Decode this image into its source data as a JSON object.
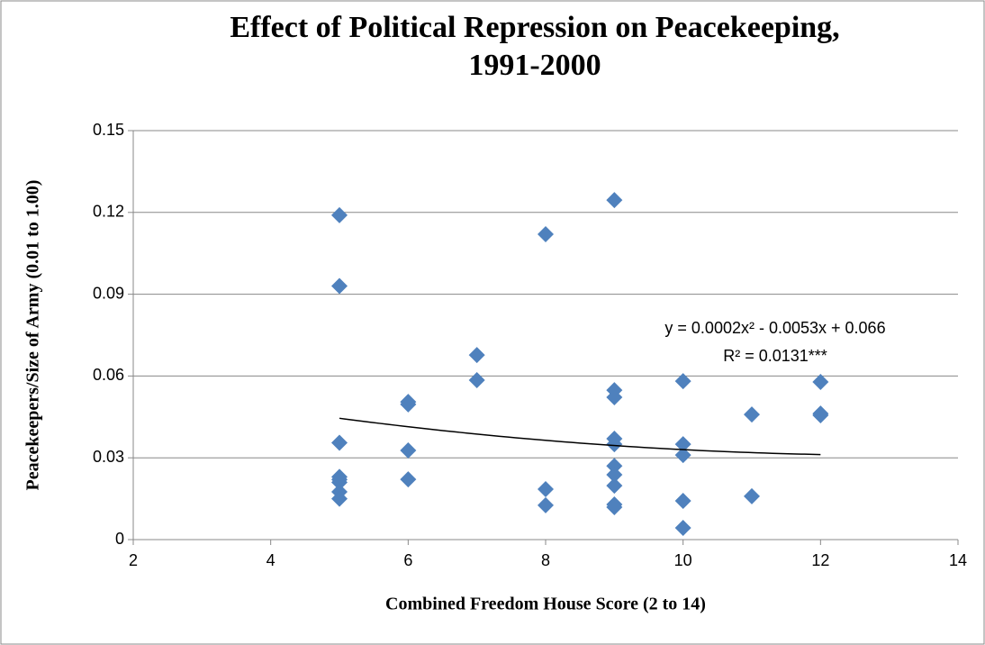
{
  "chart_data": {
    "type": "scatter",
    "title": [
      "Effect of Political Repression on Peacekeeping,",
      "1991-2000"
    ],
    "xlabel": "Combined Freedom House Score (2 to 14)",
    "ylabel": "Peacekeepers/Size of Army (0.01 to 1.00)",
    "x": [
      5,
      5,
      5,
      5,
      5,
      5,
      5,
      5,
      6,
      6,
      6,
      6,
      7,
      7,
      8,
      8,
      8,
      9,
      9,
      9,
      9,
      9,
      9,
      9,
      9,
      9,
      9,
      10,
      10,
      10,
      10,
      10,
      11,
      11,
      12,
      12,
      12
    ],
    "values": [
      0.119,
      0.093,
      0.0355,
      0.023,
      0.022,
      0.021,
      0.0175,
      0.015,
      0.0505,
      0.0496,
      0.0327,
      0.0221,
      0.0677,
      0.0585,
      0.112,
      0.0185,
      0.0126,
      0.1245,
      0.0548,
      0.0522,
      0.037,
      0.035,
      0.027,
      0.0238,
      0.0198,
      0.0129,
      0.0119,
      0.0581,
      0.035,
      0.031,
      0.0142,
      0.0043,
      0.0459,
      0.0159,
      0.0578,
      0.0462,
      0.0456
    ],
    "color": "#4f81bd",
    "xlim": [
      2,
      14
    ],
    "xticks": [
      2,
      4,
      6,
      8,
      10,
      12,
      14
    ],
    "ylim": [
      0,
      0.15
    ],
    "yticks": [
      0,
      0.03,
      0.06,
      0.09,
      0.12,
      0.15
    ],
    "grid": true,
    "trendline": {
      "type": "polynomial",
      "coefficients": [
        0.0002,
        -0.0053,
        0.066
      ],
      "color": "#000000"
    },
    "annotations": [
      "y = 0.0002x² - 0.0053x + 0.066",
      "R² = 0.0131***"
    ]
  }
}
